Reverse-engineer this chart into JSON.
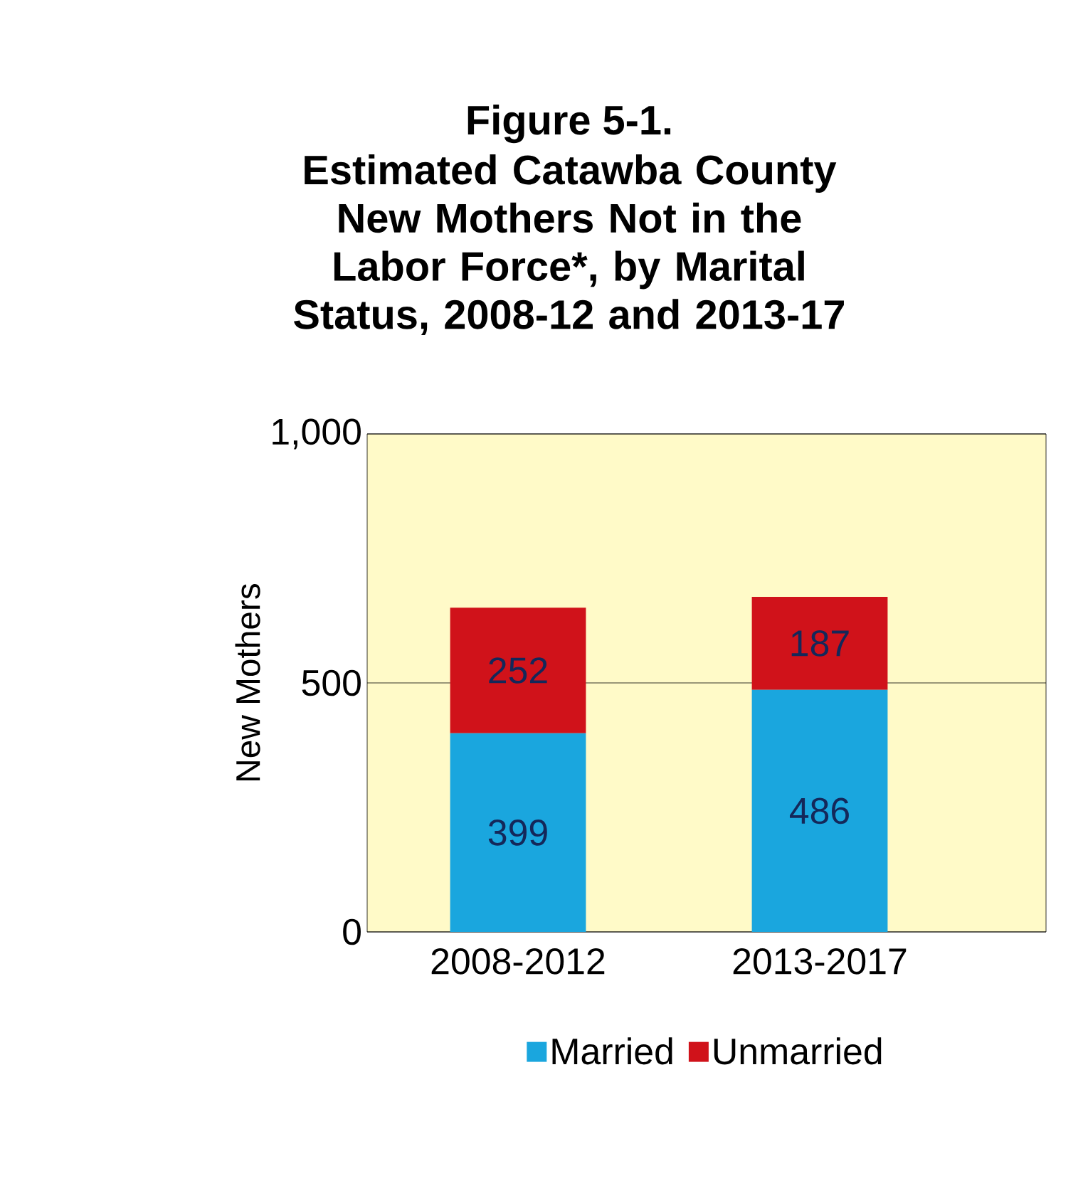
{
  "chart_data": {
    "type": "bar",
    "title": "Figure 5-1.",
    "subtitle": "Estimated Catawba County New Mothers Not in the Labor Force*, by Marital Status, 2008-12 and 2013-17",
    "ylabel": "New Mothers",
    "categories": [
      "2008-2012",
      "2013-2017"
    ],
    "series": [
      {
        "name": "Married",
        "color": "#1aa6de",
        "values": [
          399,
          486
        ]
      },
      {
        "name": "Unmarried",
        "color": "#d0121a",
        "values": [
          252,
          187
        ]
      }
    ],
    "stacked": true,
    "data_labels": true,
    "ylim": [
      0,
      1000
    ],
    "yticks": [
      0,
      500,
      {
        "value": 1000,
        "label": "1,000"
      }
    ],
    "grid": "y",
    "legend": "bottom"
  }
}
